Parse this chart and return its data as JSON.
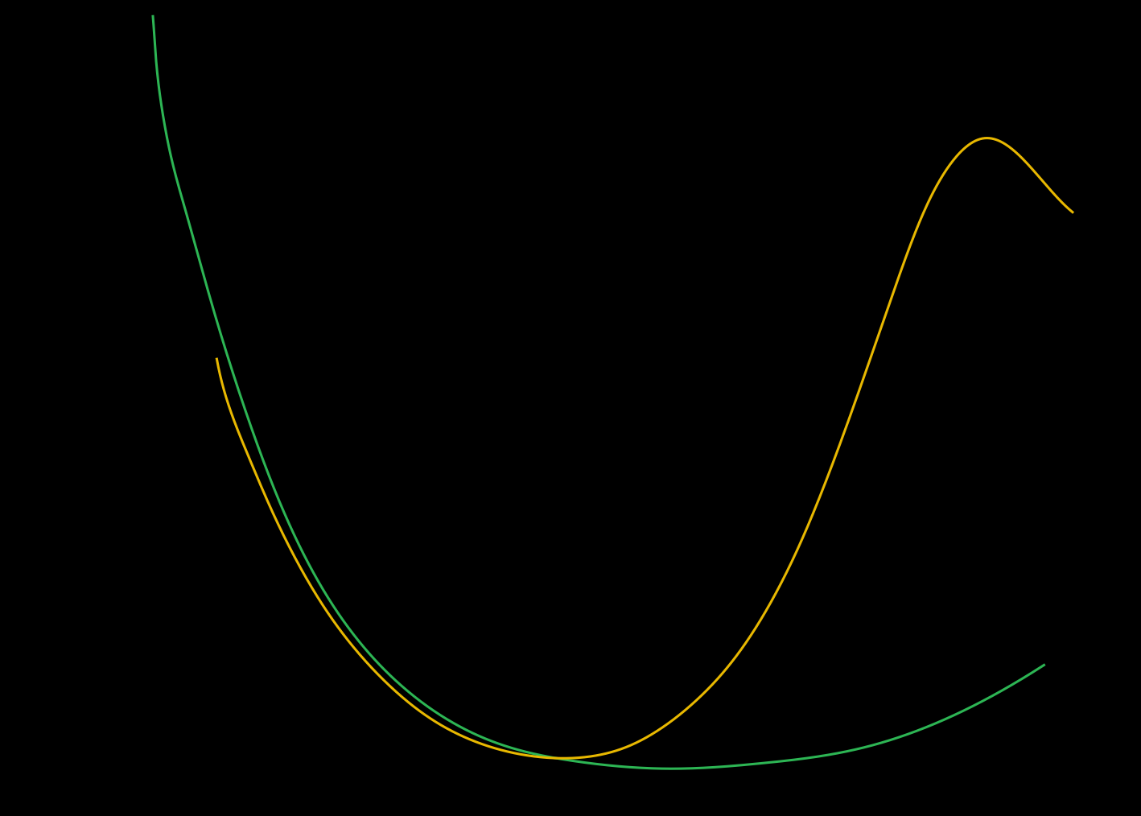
{
  "background_color": "#000000",
  "green_color": "#2db554",
  "yellow_color": "#e8b800",
  "line_width": 2.2,
  "figsize": [
    14.18,
    10.14
  ],
  "dpi": 100,
  "xlim": [
    0.0,
    1.0
  ],
  "ylim": [
    0.0,
    1.0
  ],
  "green_t": [
    0.0,
    0.02,
    0.04,
    0.06,
    0.09,
    0.12,
    0.15,
    0.18,
    0.22,
    0.27,
    0.35,
    0.45,
    0.55,
    0.65,
    0.75,
    0.85,
    0.95,
    1.0
  ],
  "green_x": [
    0.134,
    0.136,
    0.14,
    0.148,
    0.163,
    0.18,
    0.198,
    0.218,
    0.245,
    0.28,
    0.34,
    0.42,
    0.5,
    0.585,
    0.67,
    0.76,
    0.86,
    0.915
  ],
  "green_y": [
    0.98,
    0.94,
    0.885,
    0.82,
    0.74,
    0.655,
    0.57,
    0.485,
    0.385,
    0.285,
    0.175,
    0.098,
    0.068,
    0.058,
    0.065,
    0.085,
    0.14,
    0.185
  ],
  "yellow_t": [
    0.0,
    0.03,
    0.07,
    0.11,
    0.16,
    0.22,
    0.3,
    0.4,
    0.5,
    0.58,
    0.64,
    0.68,
    0.72,
    0.76,
    0.8,
    0.84,
    0.88,
    0.92,
    0.96,
    1.0
  ],
  "yellow_x": [
    0.19,
    0.2,
    0.218,
    0.238,
    0.265,
    0.298,
    0.345,
    0.405,
    0.475,
    0.535,
    0.58,
    0.615,
    0.655,
    0.7,
    0.745,
    0.785,
    0.82,
    0.86,
    0.9,
    0.94
  ],
  "yellow_y": [
    0.56,
    0.505,
    0.44,
    0.375,
    0.3,
    0.228,
    0.155,
    0.098,
    0.072,
    0.078,
    0.108,
    0.148,
    0.215,
    0.33,
    0.49,
    0.65,
    0.77,
    0.83,
    0.8,
    0.74
  ]
}
